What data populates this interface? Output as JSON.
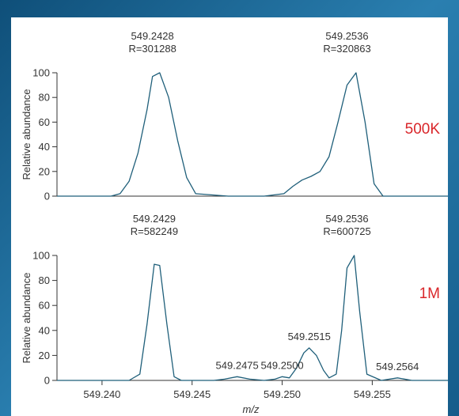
{
  "chart_data": [
    {
      "type": "line",
      "resolution_label": "500K",
      "ylabel": "Relative abundance",
      "xlim": [
        549.2375,
        549.2592
      ],
      "ylim": [
        0,
        100
      ],
      "y_ticks": [
        "0",
        "20",
        "40",
        "60",
        "80",
        "100"
      ],
      "colors": {
        "line": "#1f5f7a",
        "label": "#d9262a"
      },
      "series": [
        {
          "x": [
            549.2375,
            549.2405,
            549.241,
            549.2415,
            549.242,
            549.2425,
            549.2428,
            549.2432,
            549.2437,
            549.2442,
            549.2447,
            549.2452,
            549.247,
            549.249,
            549.2501,
            549.2506,
            549.2511,
            549.2516,
            549.2521,
            549.2526,
            549.2531,
            549.2536,
            549.2541,
            549.2546,
            549.2551,
            549.2556,
            549.2592
          ],
          "y": [
            0,
            0,
            2,
            12,
            35,
            70,
            97,
            100,
            80,
            45,
            15,
            2,
            0,
            0,
            2,
            8,
            13,
            16,
            20,
            32,
            60,
            90,
            100,
            60,
            10,
            0,
            0
          ]
        }
      ],
      "annotations": [
        {
          "x": 549.2428,
          "mz": "549.2428",
          "res": "R=301288"
        },
        {
          "x": 549.2536,
          "mz": "549.2536",
          "res": "R=320863"
        }
      ]
    },
    {
      "type": "line",
      "resolution_label": "1M",
      "ylabel": "Relative abundance",
      "xlabel": "m/z",
      "xlim": [
        549.2375,
        549.2592
      ],
      "ylim": [
        0,
        100
      ],
      "y_ticks": [
        "0",
        "20",
        "40",
        "60",
        "80",
        "100"
      ],
      "x_ticks": [
        {
          "value": 549.24,
          "label": "549.240"
        },
        {
          "value": 549.245,
          "label": "549.245"
        },
        {
          "value": 549.25,
          "label": "549.250"
        },
        {
          "value": 549.255,
          "label": "549.255"
        }
      ],
      "colors": {
        "line": "#1f5f7a",
        "label": "#d9262a"
      },
      "series": [
        {
          "x": [
            549.2375,
            549.2415,
            549.2421,
            549.2425,
            549.2429,
            549.2432,
            549.2436,
            549.244,
            549.2444,
            549.2448,
            549.2462,
            549.2468,
            549.2475,
            549.2482,
            549.249,
            549.2496,
            549.25,
            549.2504,
            549.2508,
            549.2512,
            549.2515,
            549.2519,
            549.2523,
            549.2526,
            549.253,
            549.2533,
            549.2536,
            549.254,
            549.2543,
            549.2547,
            549.2555,
            549.2564,
            549.2572,
            549.2592
          ],
          "y": [
            0,
            0,
            5,
            45,
            93,
            92,
            45,
            3,
            0,
            0,
            0,
            1,
            3,
            1,
            0,
            1,
            3,
            2,
            10,
            22,
            26,
            20,
            8,
            2,
            5,
            40,
            90,
            100,
            55,
            5,
            0,
            2,
            0,
            0
          ]
        }
      ],
      "annotations": [
        {
          "x": 549.2429,
          "mz": "549.2429",
          "res": "R=582249"
        },
        {
          "x": 549.2536,
          "mz": "549.2536",
          "res": "R=600725"
        },
        {
          "x": 549.2475,
          "mz": "549.2475"
        },
        {
          "x": 549.25,
          "mz": "549.2500"
        },
        {
          "x": 549.2515,
          "mz": "549.2515"
        },
        {
          "x": 549.2564,
          "mz": "549.2564"
        }
      ]
    }
  ]
}
